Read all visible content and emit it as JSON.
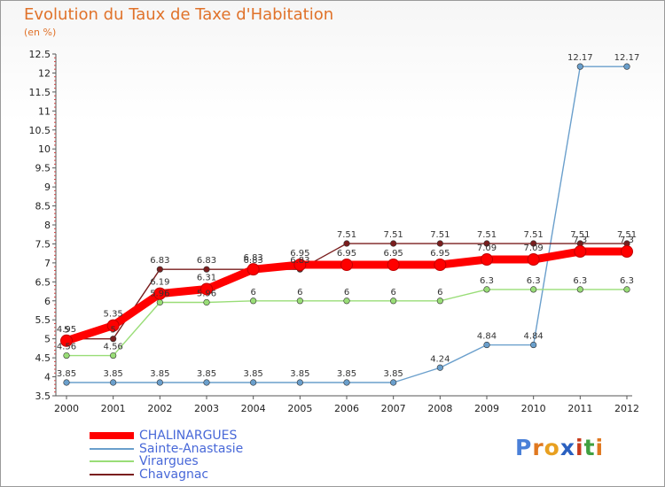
{
  "chart_data": {
    "type": "line",
    "title": "Evolution du Taux de Taxe d'Habitation",
    "ylabel": "(en %)",
    "categories": [
      "2000",
      "2001",
      "2002",
      "2003",
      "2004",
      "2005",
      "2006",
      "2007",
      "2008",
      "2009",
      "2010",
      "2011",
      "2012"
    ],
    "ylim": [
      3.5,
      12.5
    ],
    "yticks": [
      "3.5",
      "4",
      "4.5",
      "5",
      "5.5",
      "6",
      "6.5",
      "7",
      "7.5",
      "8",
      "8.5",
      "9",
      "9.5",
      "10",
      "10.5",
      "11",
      "11.5",
      "12",
      "12.5"
    ],
    "grid": false,
    "legend_position": "bottom-left",
    "series": [
      {
        "name": "CHALINARGUES",
        "color": "#ff0000",
        "values": [
          4.95,
          5.35,
          6.19,
          6.31,
          6.83,
          6.95,
          6.95,
          6.95,
          6.95,
          7.09,
          7.09,
          7.3,
          7.3
        ],
        "labels": [
          "4.95",
          "5.35",
          "6.19",
          "6.31",
          "6.83",
          "6.95",
          "6.95",
          "6.95",
          "6.95",
          "7.09",
          "7.09",
          "7.3",
          "7.3"
        ]
      },
      {
        "name": "Sainte-Anastasie",
        "color": "#6a9fcc",
        "values": [
          3.85,
          3.85,
          3.85,
          3.85,
          3.85,
          3.85,
          3.85,
          3.85,
          4.24,
          4.84,
          4.84,
          12.17,
          12.17
        ],
        "labels": [
          "3.85",
          "3.85",
          "3.85",
          "3.85",
          "3.85",
          "3.85",
          "3.85",
          "3.85",
          "4.24",
          "4.84",
          "4.84",
          "12.17",
          "12.17"
        ]
      },
      {
        "name": "Virargues",
        "color": "#99dd77",
        "values": [
          4.56,
          4.56,
          5.96,
          5.96,
          6.0,
          6.0,
          6.0,
          6.0,
          6.0,
          6.3,
          6.3,
          6.3,
          6.3
        ],
        "labels": [
          "4.56",
          "4.56",
          "5.96",
          "5.96",
          "6",
          "6",
          "6",
          "6",
          "6",
          "6.3",
          "6.3",
          "6.3",
          "6.3"
        ]
      },
      {
        "name": "Chavagnac",
        "color": "#7a1e1e",
        "values": [
          5.0,
          5.0,
          6.83,
          6.83,
          6.83,
          6.83,
          7.51,
          7.51,
          7.51,
          7.51,
          7.51,
          7.51,
          7.51
        ],
        "labels": [
          "5",
          "5",
          "6.83",
          "6.83",
          "6.83",
          "6.83",
          "7.51",
          "7.51",
          "7.51",
          "7.51",
          "7.51",
          "7.51",
          "7.51"
        ]
      }
    ]
  },
  "logo": {
    "text": "Proxiti",
    "letters": [
      "P",
      "r",
      "o",
      "x",
      "i",
      "t",
      "i"
    ],
    "colors": [
      "#4a80d8",
      "#e07820",
      "#e8a020",
      "#2a60c0",
      "#c83c1c",
      "#40a040",
      "#e07820"
    ]
  }
}
